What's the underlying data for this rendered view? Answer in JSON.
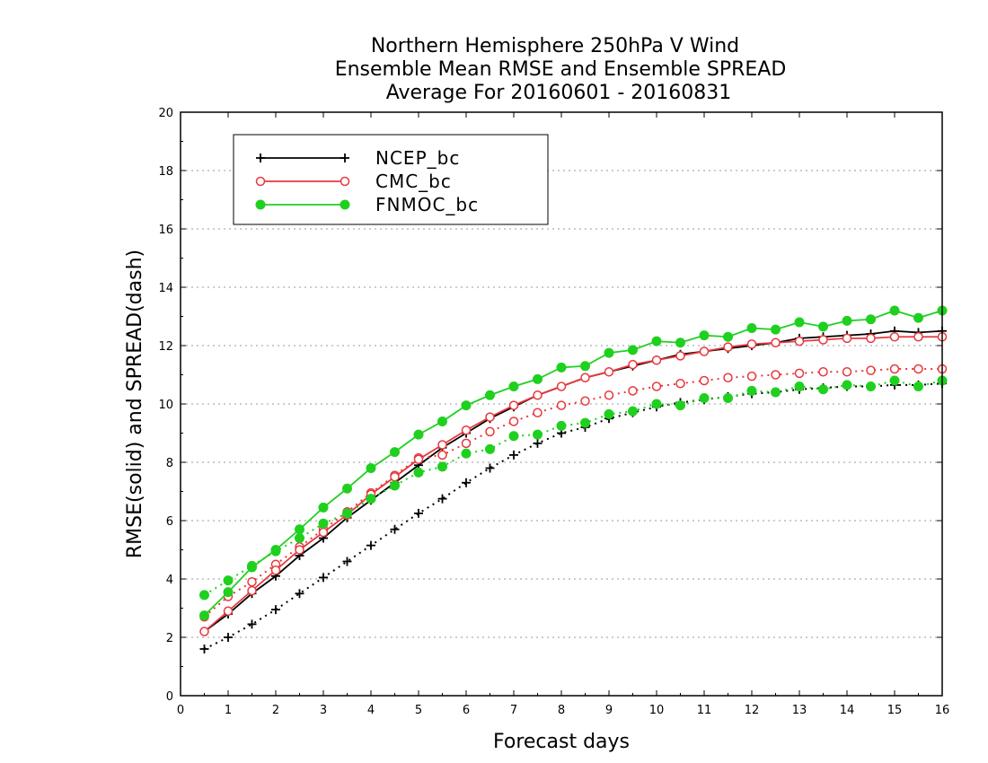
{
  "chart_data": {
    "type": "line",
    "title_lines": [
      "Northern Hemisphere 250hPa V Wind",
      "Ensemble Mean RMSE and Ensemble SPREAD",
      "Average For 20160601 - 20160831"
    ],
    "xlabel": "Forecast days",
    "ylabel": "RMSE(solid) and SPREAD(dash)",
    "xlim": [
      0,
      16
    ],
    "ylim": [
      0,
      20
    ],
    "x_ticks": [
      0,
      1,
      2,
      3,
      4,
      5,
      6,
      7,
      8,
      9,
      10,
      11,
      12,
      13,
      14,
      15,
      16
    ],
    "y_ticks": [
      0,
      2,
      4,
      6,
      8,
      10,
      12,
      14,
      16,
      18,
      20
    ],
    "x_tick_labels": [
      "0",
      "1",
      "2",
      "3",
      "4",
      "5",
      "6",
      "7",
      "8",
      "9",
      "10",
      "11",
      "12",
      "13",
      "14",
      "15",
      "16"
    ],
    "y_tick_labels": [
      "0",
      "2",
      "4",
      "6",
      "8",
      "10",
      "12",
      "14",
      "16",
      "18",
      "20"
    ],
    "grid": "horizontal dotted",
    "legend_position": "top-left",
    "x": [
      0.5,
      1,
      1.5,
      2,
      2.5,
      3,
      3.5,
      4,
      4.5,
      5,
      5.5,
      6,
      6.5,
      7,
      7.5,
      8,
      8.5,
      9,
      9.5,
      10,
      10.5,
      11,
      11.5,
      12,
      12.5,
      13,
      13.5,
      14,
      14.5,
      15,
      15.5,
      16
    ],
    "series": [
      {
        "name": "NCEP_bc",
        "color": "#000000",
        "marker": "plus",
        "rmse": [
          2.2,
          2.8,
          3.5,
          4.1,
          4.8,
          5.4,
          6.1,
          6.7,
          7.3,
          7.9,
          8.5,
          9.0,
          9.5,
          9.9,
          10.3,
          10.6,
          10.9,
          11.1,
          11.3,
          11.5,
          11.7,
          11.8,
          11.9,
          12.0,
          12.1,
          12.25,
          12.3,
          12.35,
          12.4,
          12.5,
          12.45,
          12.5
        ],
        "spread": [
          1.6,
          2.0,
          2.45,
          2.95,
          3.5,
          4.05,
          4.6,
          5.15,
          5.7,
          6.25,
          6.75,
          7.3,
          7.8,
          8.25,
          8.65,
          9.0,
          9.2,
          9.5,
          9.7,
          9.9,
          10.05,
          10.15,
          10.25,
          10.35,
          10.4,
          10.5,
          10.55,
          10.6,
          10.6,
          10.65,
          10.65,
          10.7
        ]
      },
      {
        "name": "CMC_bc",
        "color": "#e8383d",
        "marker": "open-circle",
        "rmse": [
          2.2,
          2.9,
          3.6,
          4.3,
          5.0,
          5.6,
          6.2,
          6.9,
          7.5,
          8.1,
          8.6,
          9.1,
          9.55,
          9.95,
          10.3,
          10.6,
          10.9,
          11.1,
          11.35,
          11.5,
          11.65,
          11.8,
          11.95,
          12.05,
          12.1,
          12.15,
          12.2,
          12.25,
          12.25,
          12.3,
          12.3,
          12.3
        ],
        "spread": [
          2.7,
          3.4,
          3.9,
          4.5,
          5.1,
          5.7,
          6.3,
          6.95,
          7.55,
          8.15,
          8.25,
          8.65,
          9.05,
          9.4,
          9.7,
          9.95,
          10.1,
          10.3,
          10.45,
          10.6,
          10.7,
          10.8,
          10.9,
          10.95,
          11.0,
          11.05,
          11.1,
          11.1,
          11.15,
          11.2,
          11.2,
          11.2
        ]
      },
      {
        "name": "FNMOC_bc",
        "color": "#1fd01f",
        "marker": "filled-circle",
        "rmse": [
          2.75,
          3.55,
          4.4,
          5.0,
          5.7,
          6.45,
          7.1,
          7.8,
          8.35,
          8.95,
          9.4,
          9.95,
          10.3,
          10.6,
          10.85,
          11.25,
          11.3,
          11.75,
          11.85,
          12.15,
          12.1,
          12.35,
          12.3,
          12.6,
          12.55,
          12.8,
          12.65,
          12.85,
          12.9,
          13.2,
          12.95,
          13.2
        ],
        "spread": [
          3.45,
          3.95,
          4.45,
          4.95,
          5.4,
          5.9,
          6.25,
          6.75,
          7.2,
          7.65,
          7.85,
          8.3,
          8.45,
          8.9,
          8.95,
          9.25,
          9.35,
          9.65,
          9.75,
          10.0,
          9.95,
          10.2,
          10.2,
          10.45,
          10.4,
          10.6,
          10.5,
          10.65,
          10.6,
          10.8,
          10.6,
          10.8
        ]
      }
    ]
  }
}
